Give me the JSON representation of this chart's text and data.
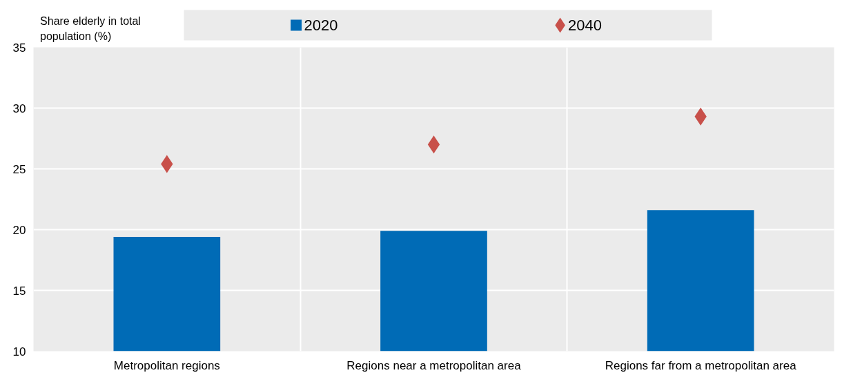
{
  "chart_data": {
    "type": "bar",
    "ylabel": "Share elderly in total population (%)",
    "categories": [
      "Metropolitan regions",
      "Regions near a metropolitan area",
      "Regions far from a metropolitan area"
    ],
    "series": [
      {
        "name": "2020",
        "color": "#006bb6",
        "values": [
          19.4,
          19.9,
          21.6
        ]
      },
      {
        "name": "2040",
        "type": "scatter",
        "marker": "diamond",
        "color": "#c8504a",
        "values": [
          25.4,
          27.0,
          29.3
        ]
      }
    ],
    "ylim": [
      10,
      35
    ],
    "yticks": [
      10,
      15,
      20,
      25,
      30,
      35
    ],
    "grid": true,
    "legend": "top"
  }
}
